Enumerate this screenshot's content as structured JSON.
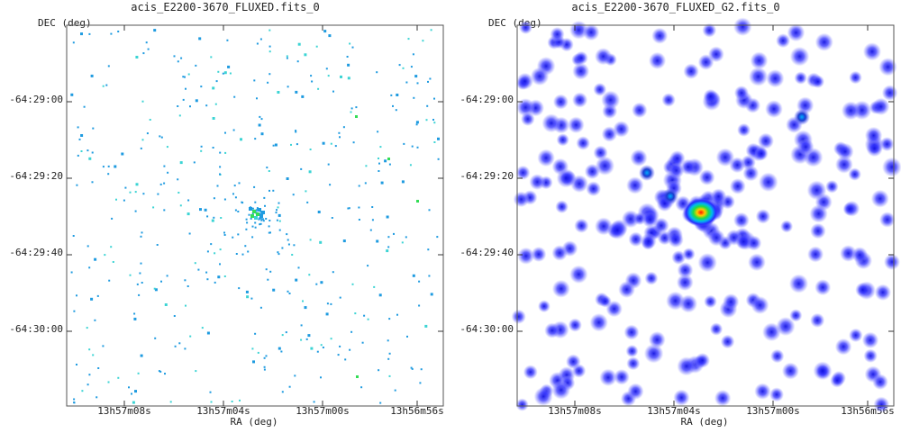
{
  "panels": [
    {
      "title": "acis_E2200-3670_FLUXED.fits_0",
      "xlabel": "RA (deg)",
      "ylabel": "DEC (deg)",
      "yticks": [
        "-64:29:00",
        "-64:29:20",
        "-64:29:40",
        "-64:30:00"
      ],
      "xticks": [
        "13h57m08s",
        "13h57m04s",
        "13h57m00s",
        "13h56m56s"
      ]
    },
    {
      "title": "acis_E2200-3670_FLUXED_G2.fits_0",
      "xlabel": "RA (deg)",
      "ylabel": "DEC (deg)",
      "yticks": [
        "-64:29:00",
        "-64:29:20",
        "-64:29:40",
        "-64:30:00"
      ],
      "xticks": [
        "13h57m08s",
        "13h57m04s",
        "13h57m00s",
        "13h56m56s"
      ]
    }
  ],
  "colors": {
    "raw_pixel": "#1e9be0",
    "raw_pixel_bright": "#3cd4d4",
    "green_pixel": "#33dd55",
    "smoothed_blob": "#3a3aff",
    "hot_core": "#ff2200"
  }
}
